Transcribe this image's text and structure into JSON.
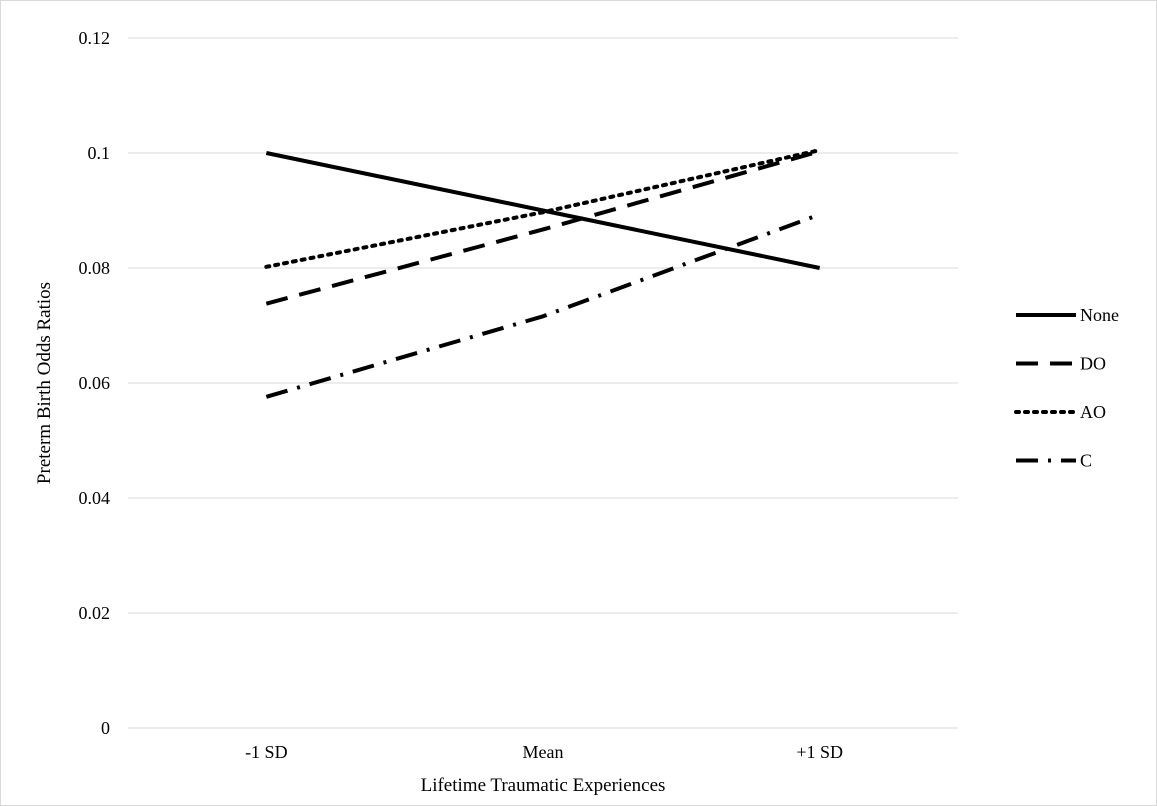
{
  "chart_data": {
    "type": "line",
    "title": "",
    "xlabel": "Lifetime Traumatic Experiences",
    "ylabel": "Preterm Birth Odds Ratios",
    "categories": [
      "-1 SD",
      "Mean",
      "+1 SD"
    ],
    "ylim": [
      0,
      0.12
    ],
    "yticks": [
      "0",
      "0.02",
      "0.04",
      "0.06",
      "0.08",
      "0.1",
      "0.12"
    ],
    "grid": true,
    "legend_position": "right",
    "series": [
      {
        "name": "None",
        "values": [
          0.1,
          0.09,
          0.08
        ],
        "dash": "solid"
      },
      {
        "name": "DO",
        "values": [
          0.0738,
          0.0867,
          0.1003
        ],
        "dash": "dashed"
      },
      {
        "name": "AO",
        "values": [
          0.0802,
          0.0897,
          0.1005
        ],
        "dash": "dotted"
      },
      {
        "name": "C",
        "values": [
          0.0576,
          0.0716,
          0.0893
        ],
        "dash": "dash-dot"
      }
    ],
    "line_color": "#000000",
    "grid_color": "#d9d9d9"
  }
}
